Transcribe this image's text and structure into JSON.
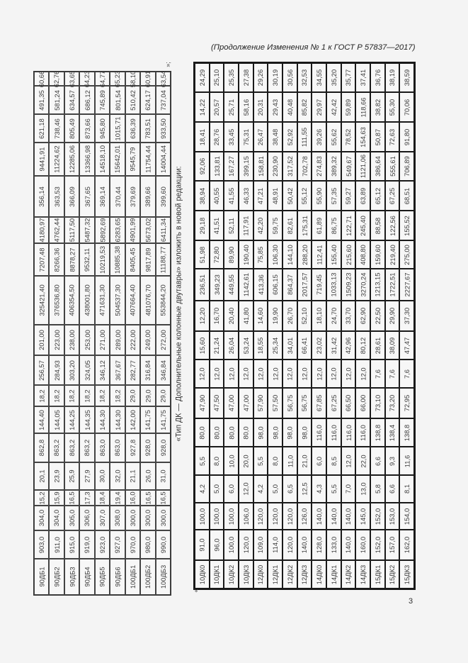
{
  "header": "(Продолжение Изменения № 1 к ГОСТ Р 57837—2017)",
  "top_table": {
    "closing_mark": "»;",
    "rows": [
      [
        "90ДБ1",
        "903,0",
        "304,0",
        "15,2",
        "20,1",
        "862,8",
        "144,40",
        "18,2",
        "256,57",
        "201,00",
        "325421,40",
        "7207,48",
        "4180,97",
        "356,14",
        "9441,91",
        "621,18",
        "491,35",
        "60,66"
      ],
      [
        "90ДБ2",
        "911,0",
        "304,0",
        "15,9",
        "23,9",
        "863,2",
        "144,05",
        "18,2",
        "284,93",
        "223,00",
        "376536,80",
        "8266,36",
        "4762,44",
        "363,53",
        "11224,62",
        "738,46",
        "581,24",
        "62,76"
      ],
      [
        "90ДБ3",
        "915,0",
        "305,0",
        "16,5",
        "25,9",
        "863,2",
        "144,25",
        "18,2",
        "303,20",
        "238,00",
        "406354,50",
        "8878,27",
        "5117,50",
        "366,09",
        "12285,06",
        "805,49",
        "634,57",
        "63,65"
      ],
      [
        "90ДБ4",
        "919,0",
        "306,0",
        "17,3",
        "27,9",
        "863,2",
        "144,35",
        "18,2",
        "324,05",
        "253,00",
        "438001,80",
        "9532,11",
        "5487,32",
        "367,65",
        "13366,98",
        "873,66",
        "686,12",
        "64,23"
      ],
      [
        "90ДБ5",
        "923,0",
        "307,0",
        "18,4",
        "30,0",
        "863,0",
        "144,30",
        "18,2",
        "346,12",
        "271,00",
        "471631,30",
        "10219,53",
        "5892,69",
        "369,14",
        "14518,10",
        "945,80",
        "745,89",
        "64,77"
      ],
      [
        "90ДБ6",
        "927,0",
        "308,0",
        "19,4",
        "32,0",
        "863,0",
        "144,30",
        "18,2",
        "367,67",
        "289,00",
        "504537,30",
        "10885,38",
        "6283,65",
        "370,44",
        "15642,01",
        "1015,71",
        "801,54",
        "65,23"
      ],
      [
        "100ДБ1",
        "970,0",
        "300,0",
        "16,0",
        "21,1",
        "927,8",
        "142,00",
        "29,0",
        "282,77",
        "222,00",
        "407664,40",
        "8405,45",
        "4901,99",
        "379,69",
        "9545,79",
        "636,39",
        "510,42",
        "58,10"
      ],
      [
        "100ДБ2",
        "980,0",
        "300,0",
        "16,5",
        "26,0",
        "928,0",
        "141,75",
        "29,0",
        "316,84",
        "249,00",
        "481076,70",
        "9817,89",
        "5673,02",
        "389,66",
        "11754,44",
        "783,51",
        "624,17",
        "60,91"
      ],
      [
        "100ДБ3",
        "990,0",
        "300,0",
        "16,5",
        "31,0",
        "928,0",
        "141,75",
        "29,0",
        "346,84",
        "272,00",
        "553844,20",
        "11188,77",
        "6411,34",
        "399,60",
        "14004,44",
        "933,50",
        "737,04",
        "63,54"
      ]
    ]
  },
  "caption": "«Тип ДК — Дополнительные колонные двутавры» изложить в новой редакции:",
  "bottom_table": {
    "opening_mark": "«",
    "rows": [
      [
        "10ДК0",
        "91,0",
        "100,0",
        "4,2",
        "5,5",
        "80,0",
        "47,90",
        "12,0",
        "15,60",
        "12,20",
        "236,51",
        "51,98",
        "29,18",
        "38,94",
        "92,06",
        "18,41",
        "14,22",
        "24,29"
      ],
      [
        "10ДК1",
        "96,0",
        "100,0",
        "5,0",
        "8,0",
        "80,0",
        "47,50",
        "12,0",
        "21,24",
        "16,70",
        "349,23",
        "72,80",
        "41,51",
        "40,55",
        "133,81",
        "28,76",
        "20,57",
        "25,10"
      ],
      [
        "10ДК2",
        "100,0",
        "100,0",
        "6,0",
        "10,0",
        "80,0",
        "47,00",
        "12,0",
        "26,04",
        "20,40",
        "449,55",
        "89,90",
        "52,11",
        "41,55",
        "167,27",
        "33,45",
        "25,71",
        "25,35"
      ],
      [
        "10ДК3",
        "120,0",
        "106,0",
        "12,0",
        "20,0",
        "80,0",
        "47,00",
        "12,0",
        "53,24",
        "41,80",
        "1142,61",
        "190,40",
        "117,91",
        "46,33",
        "399,15",
        "75,31",
        "58,16",
        "27,38"
      ],
      [
        "12ДК0",
        "109,0",
        "120,0",
        "4,2",
        "5,5",
        "98,0",
        "57,90",
        "12,0",
        "18,55",
        "14,60",
        "413,36",
        "75,85",
        "42,20",
        "47,21",
        "158,81",
        "26,47",
        "20,31",
        "29,26"
      ],
      [
        "12ДК1",
        "114,0",
        "120,0",
        "5,0",
        "8,0",
        "98,0",
        "57,50",
        "12,0",
        "25,34",
        "19,90",
        "606,15",
        "106,30",
        "59,75",
        "48,91",
        "230,90",
        "38,48",
        "29,43",
        "30,19"
      ],
      [
        "12ДК2",
        "120,0",
        "120,0",
        "6,5",
        "11,0",
        "98,0",
        "56,75",
        "12,0",
        "34,01",
        "26,70",
        "864,37",
        "144,10",
        "82,61",
        "50,42",
        "317,52",
        "52,92",
        "40,48",
        "30,56"
      ],
      [
        "12ДК3",
        "140,0",
        "126,0",
        "12,5",
        "21,0",
        "98,0",
        "56,75",
        "12,0",
        "66,41",
        "52,10",
        "2017,57",
        "288,20",
        "175,31",
        "55,12",
        "702,78",
        "111,55",
        "85,82",
        "32,53"
      ],
      [
        "14ДК0",
        "128,0",
        "140,0",
        "4,3",
        "6,0",
        "116,0",
        "67,85",
        "12,0",
        "23,02",
        "18,10",
        "719,45",
        "112,41",
        "61,89",
        "55,90",
        "274,83",
        "39,26",
        "29,97",
        "34,55"
      ],
      [
        "14ДК1",
        "133,0",
        "140,0",
        "5,5",
        "8,5",
        "116,0",
        "67,25",
        "12,0",
        "31,42",
        "24,70",
        "1033,13",
        "155,40",
        "86,75",
        "57,35",
        "389,32",
        "55,62",
        "42,42",
        "35,20"
      ],
      [
        "14ДК2",
        "140,0",
        "140,0",
        "7,0",
        "12,0",
        "116,0",
        "66,50",
        "12,0",
        "42,96",
        "33,70",
        "1509,23",
        "215,60",
        "122,71",
        "59,27",
        "549,67",
        "78,52",
        "59,89",
        "35,77"
      ],
      [
        "14ДК3",
        "160,0",
        "145,0",
        "13,0",
        "22,0",
        "116,0",
        "66,00",
        "12,0",
        "80,12",
        "62,90",
        "3270,24",
        "408,80",
        "245,40",
        "63,89",
        "1121,06",
        "154,63",
        "118,66",
        "37,41"
      ],
      [
        "15ДК1",
        "152,0",
        "152,0",
        "5,8",
        "6,6",
        "138,8",
        "73,10",
        "7,6",
        "28,61",
        "22,50",
        "1213,15",
        "159,60",
        "88,58",
        "65,12",
        "386,64",
        "50,87",
        "38,82",
        "36,76"
      ],
      [
        "15ДК2",
        "157,0",
        "153,0",
        "6,6",
        "9,3",
        "138,4",
        "73,20",
        "7,6",
        "38,09",
        "29,90",
        "1722,51",
        "219,40",
        "122,56",
        "67,25",
        "555,61",
        "72,63",
        "55,30",
        "38,19"
      ],
      [
        "15ДК3",
        "162,0",
        "154,0",
        "8,1",
        "11,6",
        "138,8",
        "72,95",
        "7,6",
        "47,47",
        "37,30",
        "2227,67",
        "275,00",
        "155,52",
        "68,51",
        "706,89",
        "91,80",
        "70,06",
        "38,59"
      ]
    ]
  },
  "page_number": "3"
}
